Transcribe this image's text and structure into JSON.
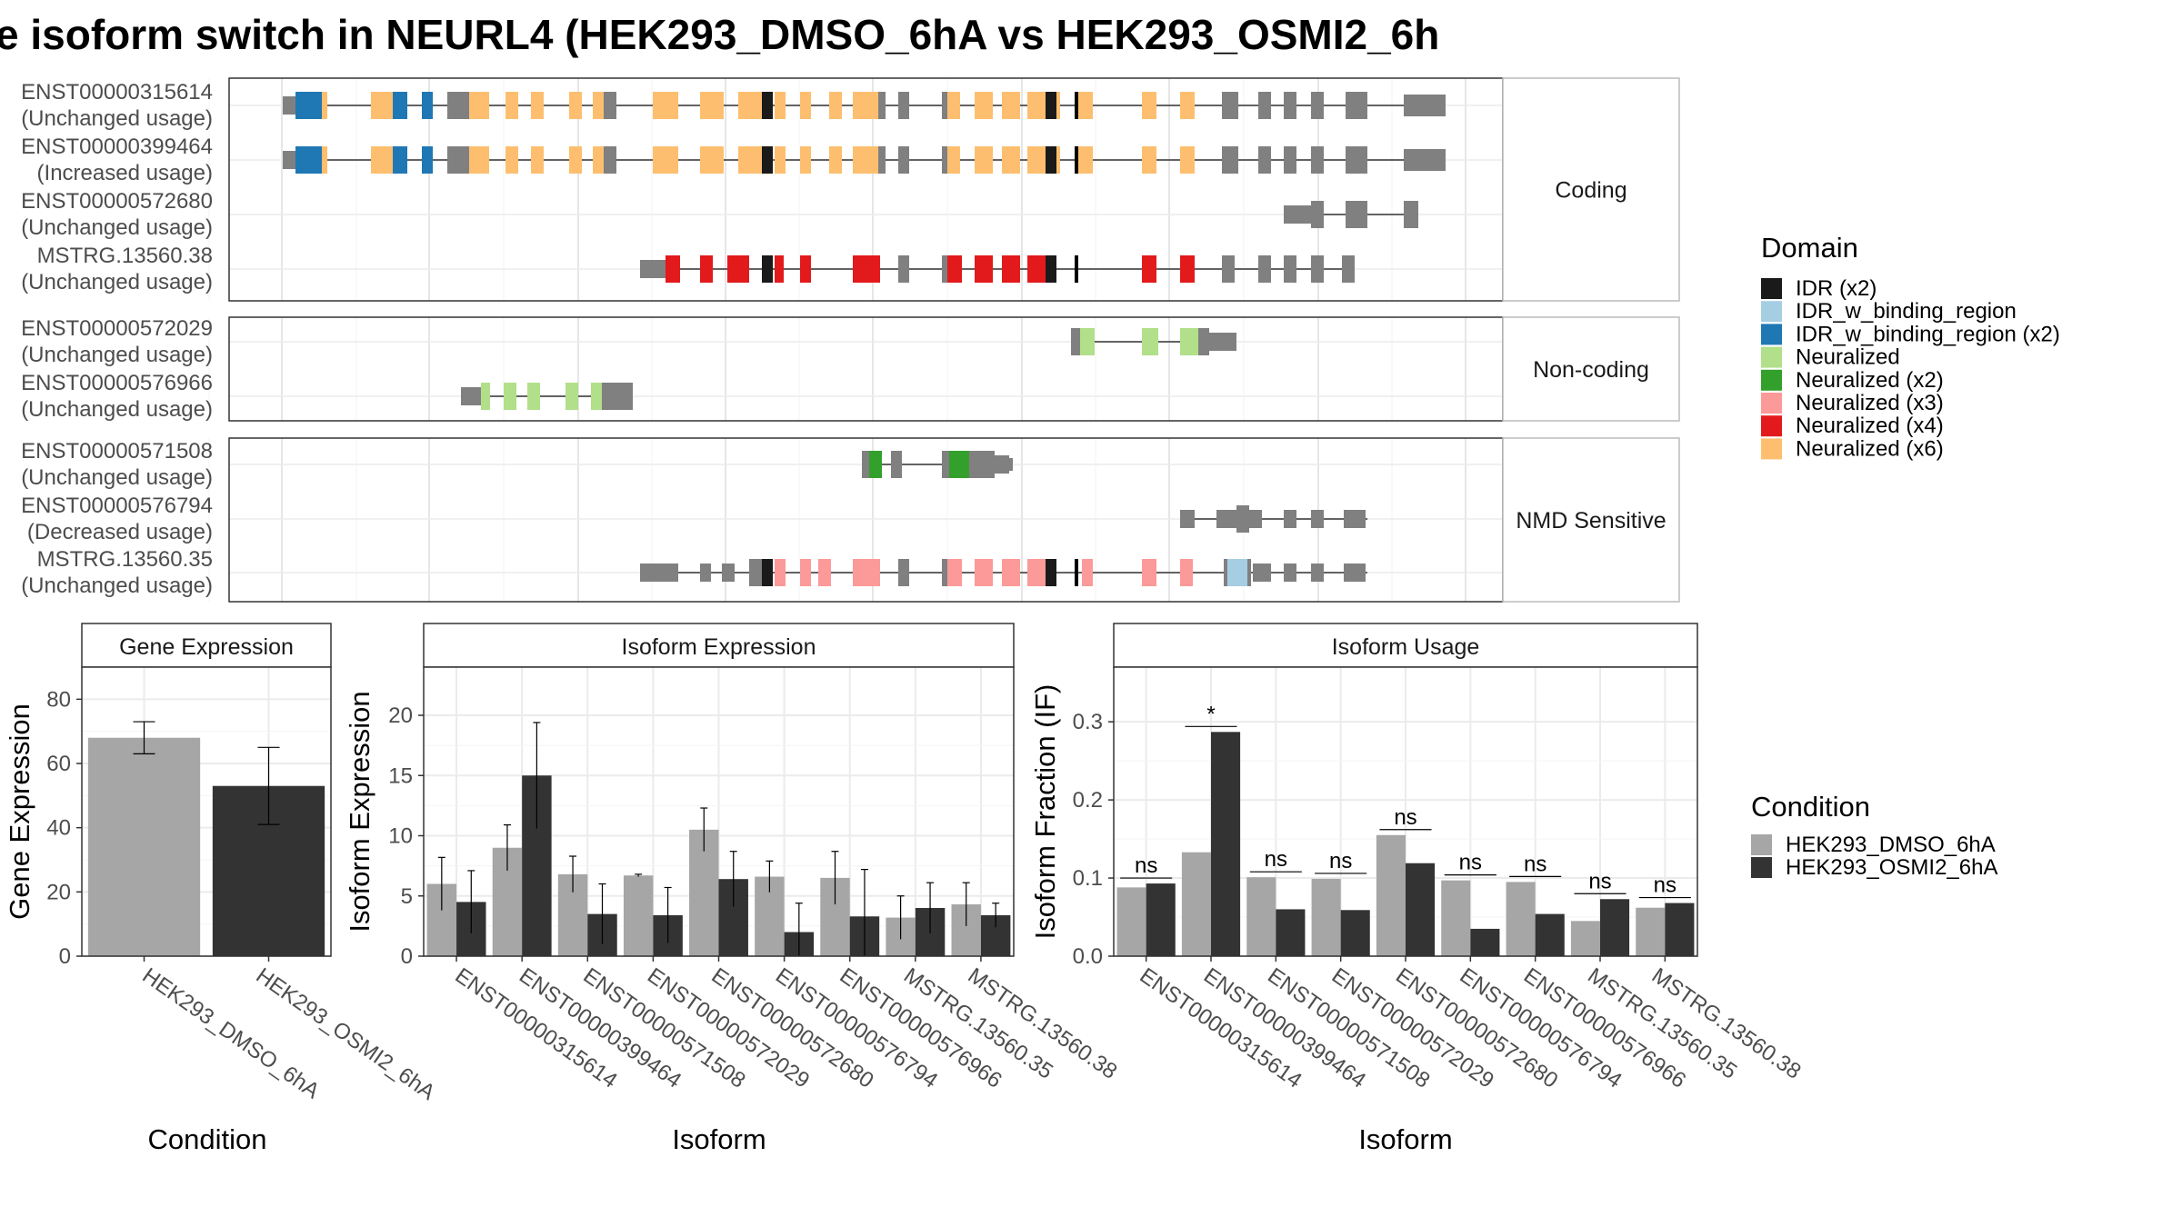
{
  "title": "e isoform switch in NEURL4 (HEK293_DMSO_6hA vs HEK293_OSMI2_6h",
  "colors": {
    "gray_exon": "#808080",
    "IDR (x2)": "#1a1a1a",
    "IDR_w_binding_region": "#a6cee3",
    "IDR_w_binding_region (x2)": "#1f78b4",
    "Neuralized": "#b2df8a",
    "Neuralized (x2)": "#33a02c",
    "Neuralized (x3)": "#fb9a99",
    "Neuralized (x4)": "#e31a1c",
    "Neuralized (x6)": "#fdbf6f",
    "condition_dmso": "#a6a6a6",
    "condition_osmi": "#333333"
  },
  "domain_legend": {
    "title": "Domain",
    "items": [
      "IDR (x2)",
      "IDR_w_binding_region",
      "IDR_w_binding_region (x2)",
      "Neuralized",
      "Neuralized (x2)",
      "Neuralized (x3)",
      "Neuralized (x4)",
      "Neuralized (x6)"
    ]
  },
  "condition_legend": {
    "title": "Condition",
    "items": [
      "HEK293_DMSO_6hA",
      "HEK293_OSMI2_6hA"
    ]
  },
  "isoform_panels": [
    {
      "label": "Coding",
      "isoforms": [
        {
          "id": "ENST00000315614",
          "usage": "(Unchanged usage)"
        },
        {
          "id": "ENST00000399464",
          "usage": "(Increased usage)"
        },
        {
          "id": "ENST00000572680",
          "usage": "(Unchanged usage)"
        },
        {
          "id": "MSTRG.13560.38",
          "usage": "(Unchanged usage)"
        }
      ]
    },
    {
      "label": "Non-coding",
      "isoforms": [
        {
          "id": "ENST00000572029",
          "usage": "(Unchanged usage)"
        },
        {
          "id": "ENST00000576966",
          "usage": "(Unchanged usage)"
        }
      ]
    },
    {
      "label": "NMD Sensitive",
      "isoforms": [
        {
          "id": "ENST00000571508",
          "usage": "(Unchanged usage)"
        },
        {
          "id": "ENST00000576794",
          "usage": "(Decreased usage)"
        },
        {
          "id": "MSTRG.13560.35",
          "usage": "(Unchanged usage)"
        }
      ]
    }
  ],
  "chart_data": [
    {
      "type": "bar",
      "panel_title": "Gene Expression",
      "xlabel": "Condition",
      "ylabel": "Gene Expression",
      "ylim": [
        0,
        90
      ],
      "yticks": [
        0,
        20,
        40,
        60,
        80
      ],
      "categories": [
        "HEK293_DMSO_6hA",
        "HEK293_OSMI2_6hA"
      ],
      "values": [
        68,
        53
      ],
      "errors": [
        5,
        12
      ]
    },
    {
      "type": "bar",
      "panel_title": "Isoform Expression",
      "xlabel": "Isoform",
      "ylabel": "Isoform Expression",
      "ylim": [
        0,
        24
      ],
      "yticks": [
        0,
        5,
        10,
        15,
        20
      ],
      "categories": [
        "ENST00000315614",
        "ENST00000399464",
        "ENST00000571508",
        "ENST00000572029",
        "ENST00000572680",
        "ENST00000576794",
        "ENST00000576966",
        "MSTRG.13560.35",
        "MSTRG.13560.38"
      ],
      "series": [
        {
          "name": "HEK293_DMSO_6hA",
          "values": [
            6.0,
            9.0,
            6.8,
            6.7,
            10.5,
            6.6,
            6.5,
            3.2,
            4.3
          ],
          "errors": [
            2.2,
            1.9,
            1.5,
            0.1,
            1.8,
            1.3,
            2.2,
            1.8,
            1.8
          ]
        },
        {
          "name": "HEK293_OSMI2_6hA",
          "values": [
            4.5,
            15.0,
            3.5,
            3.4,
            6.4,
            2.0,
            3.3,
            4.0,
            3.4
          ],
          "errors": [
            2.6,
            4.4,
            2.5,
            2.3,
            2.3,
            2.4,
            3.9,
            2.1,
            1.0
          ]
        }
      ]
    },
    {
      "type": "bar",
      "panel_title": "Isoform Usage",
      "xlabel": "Isoform",
      "ylabel": "Isoform Fraction (IF)",
      "ylim": [
        0,
        0.37
      ],
      "yticks": [
        0.0,
        0.1,
        0.2,
        0.3
      ],
      "ytick_labels": [
        "0.0",
        "0.1",
        "0.2",
        "0.3"
      ],
      "categories": [
        "ENST00000315614",
        "ENST00000399464",
        "ENST00000571508",
        "ENST00000572029",
        "ENST00000572680",
        "ENST00000576794",
        "ENST00000576966",
        "MSTRG.13560.35",
        "MSTRG.13560.38"
      ],
      "series": [
        {
          "name": "HEK293_DMSO_6hA",
          "values": [
            0.088,
            0.133,
            0.101,
            0.099,
            0.155,
            0.097,
            0.095,
            0.045,
            0.062
          ]
        },
        {
          "name": "HEK293_OSMI2_6hA",
          "values": [
            0.093,
            0.287,
            0.06,
            0.059,
            0.119,
            0.035,
            0.054,
            0.073,
            0.068
          ]
        }
      ],
      "significance": [
        "ns",
        "*",
        "ns",
        "ns",
        "ns",
        "ns",
        "ns",
        "ns",
        "ns"
      ]
    }
  ]
}
